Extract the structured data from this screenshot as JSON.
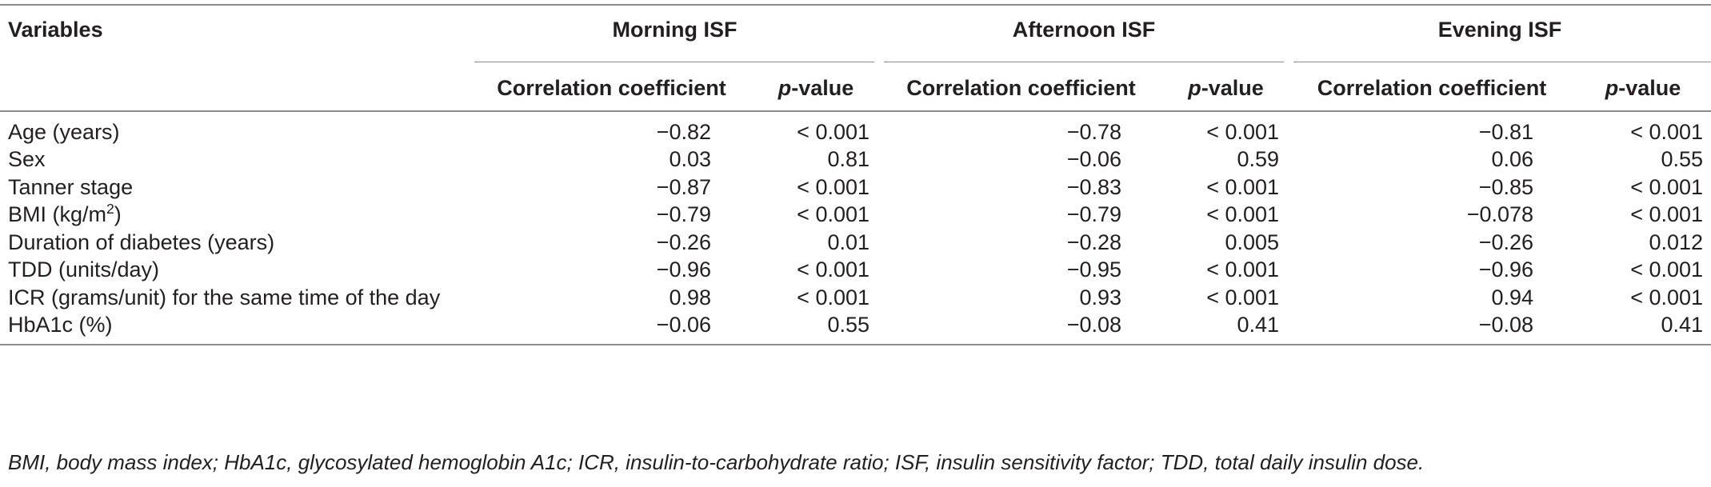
{
  "header": {
    "variables_label": "Variables",
    "groups": [
      "Morning ISF",
      "Afternoon ISF",
      "Evening ISF"
    ],
    "sub_correlation": "Correlation coefficient",
    "sub_p_italic": "p",
    "sub_p_rest": "-value"
  },
  "rows": [
    {
      "label": "Age (years)",
      "label_sup": "",
      "label_suffix": "",
      "m_r": "−0.82",
      "m_p": "< 0.001",
      "a_r": "−0.78",
      "a_p": "< 0.001",
      "e_r": "−0.81",
      "e_p": "< 0.001"
    },
    {
      "label": "Sex",
      "label_sup": "",
      "label_suffix": "",
      "m_r": "0.03",
      "m_p": "0.81",
      "a_r": "−0.06",
      "a_p": "0.59",
      "e_r": "0.06",
      "e_p": "0.55"
    },
    {
      "label": "Tanner stage",
      "label_sup": "",
      "label_suffix": "",
      "m_r": "−0.87",
      "m_p": "< 0.001",
      "a_r": "−0.83",
      "a_p": "< 0.001",
      "e_r": "−0.85",
      "e_p": "< 0.001"
    },
    {
      "label": "BMI (kg/m",
      "label_sup": "2",
      "label_suffix": ")",
      "m_r": "−0.79",
      "m_p": "< 0.001",
      "a_r": "−0.79",
      "a_p": "< 0.001",
      "e_r": "−0.078",
      "e_p": "< 0.001"
    },
    {
      "label": "Duration of diabetes (years)",
      "label_sup": "",
      "label_suffix": "",
      "m_r": "−0.26",
      "m_p": "0.01",
      "a_r": "−0.28",
      "a_p": "0.005",
      "e_r": "−0.26",
      "e_p": "0.012"
    },
    {
      "label": "TDD (units/day)",
      "label_sup": "",
      "label_suffix": "",
      "m_r": "−0.96",
      "m_p": "< 0.001",
      "a_r": "−0.95",
      "a_p": "< 0.001",
      "e_r": "−0.96",
      "e_p": "< 0.001"
    },
    {
      "label": "ICR (grams/unit) for the same time of the day",
      "label_sup": "",
      "label_suffix": "",
      "m_r": "0.98",
      "m_p": "< 0.001",
      "a_r": "0.93",
      "a_p": "< 0.001",
      "e_r": "0.94",
      "e_p": "< 0.001"
    },
    {
      "label": "HbA1c (%)",
      "label_sup": "",
      "label_suffix": "",
      "m_r": "−0.06",
      "m_p": "0.55",
      "a_r": "−0.08",
      "a_p": "0.41",
      "e_r": "−0.08",
      "e_p": "0.41"
    }
  ],
  "footnote": "BMI, body mass index; HbA1c, glycosylated hemoglobin A1c; ICR, insulin-to-carbohydrate ratio; ISF, insulin sensitivity factor; TDD, total daily insulin dose."
}
